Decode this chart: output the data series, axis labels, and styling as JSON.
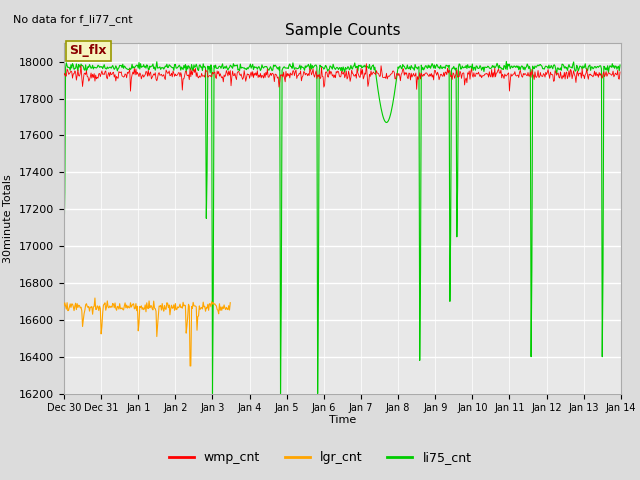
{
  "title": "Sample Counts",
  "no_data_text": "No data for f_li77_cnt",
  "ylabel": "30minute Totals",
  "xlabel": "Time",
  "ylim": [
    16200,
    18100
  ],
  "annotation_text": "SI_flx",
  "legend_labels": [
    "wmp_cnt",
    "lgr_cnt",
    "li75_cnt"
  ],
  "legend_colors": [
    "#ff0000",
    "#ffa500",
    "#00cc00"
  ],
  "background_color": "#e8e8e8",
  "x_tick_labels": [
    "Dec 30",
    "Dec 31",
    "Jan 1",
    "Jan 2",
    "Jan 3",
    "Jan 4",
    "Jan 5",
    "Jan 6",
    "Jan 7",
    "Jan 8",
    "Jan 9",
    "Jan 10",
    "Jan 11",
    "Jan 12",
    "Jan 13",
    "Jan 14"
  ],
  "wmp_base": 17930,
  "wmp_noise": 15,
  "lgr_base": 16670,
  "lgr_noise": 15,
  "li75_base": 17970,
  "li75_noise": 10,
  "figsize": [
    6.4,
    4.8
  ],
  "dpi": 100
}
